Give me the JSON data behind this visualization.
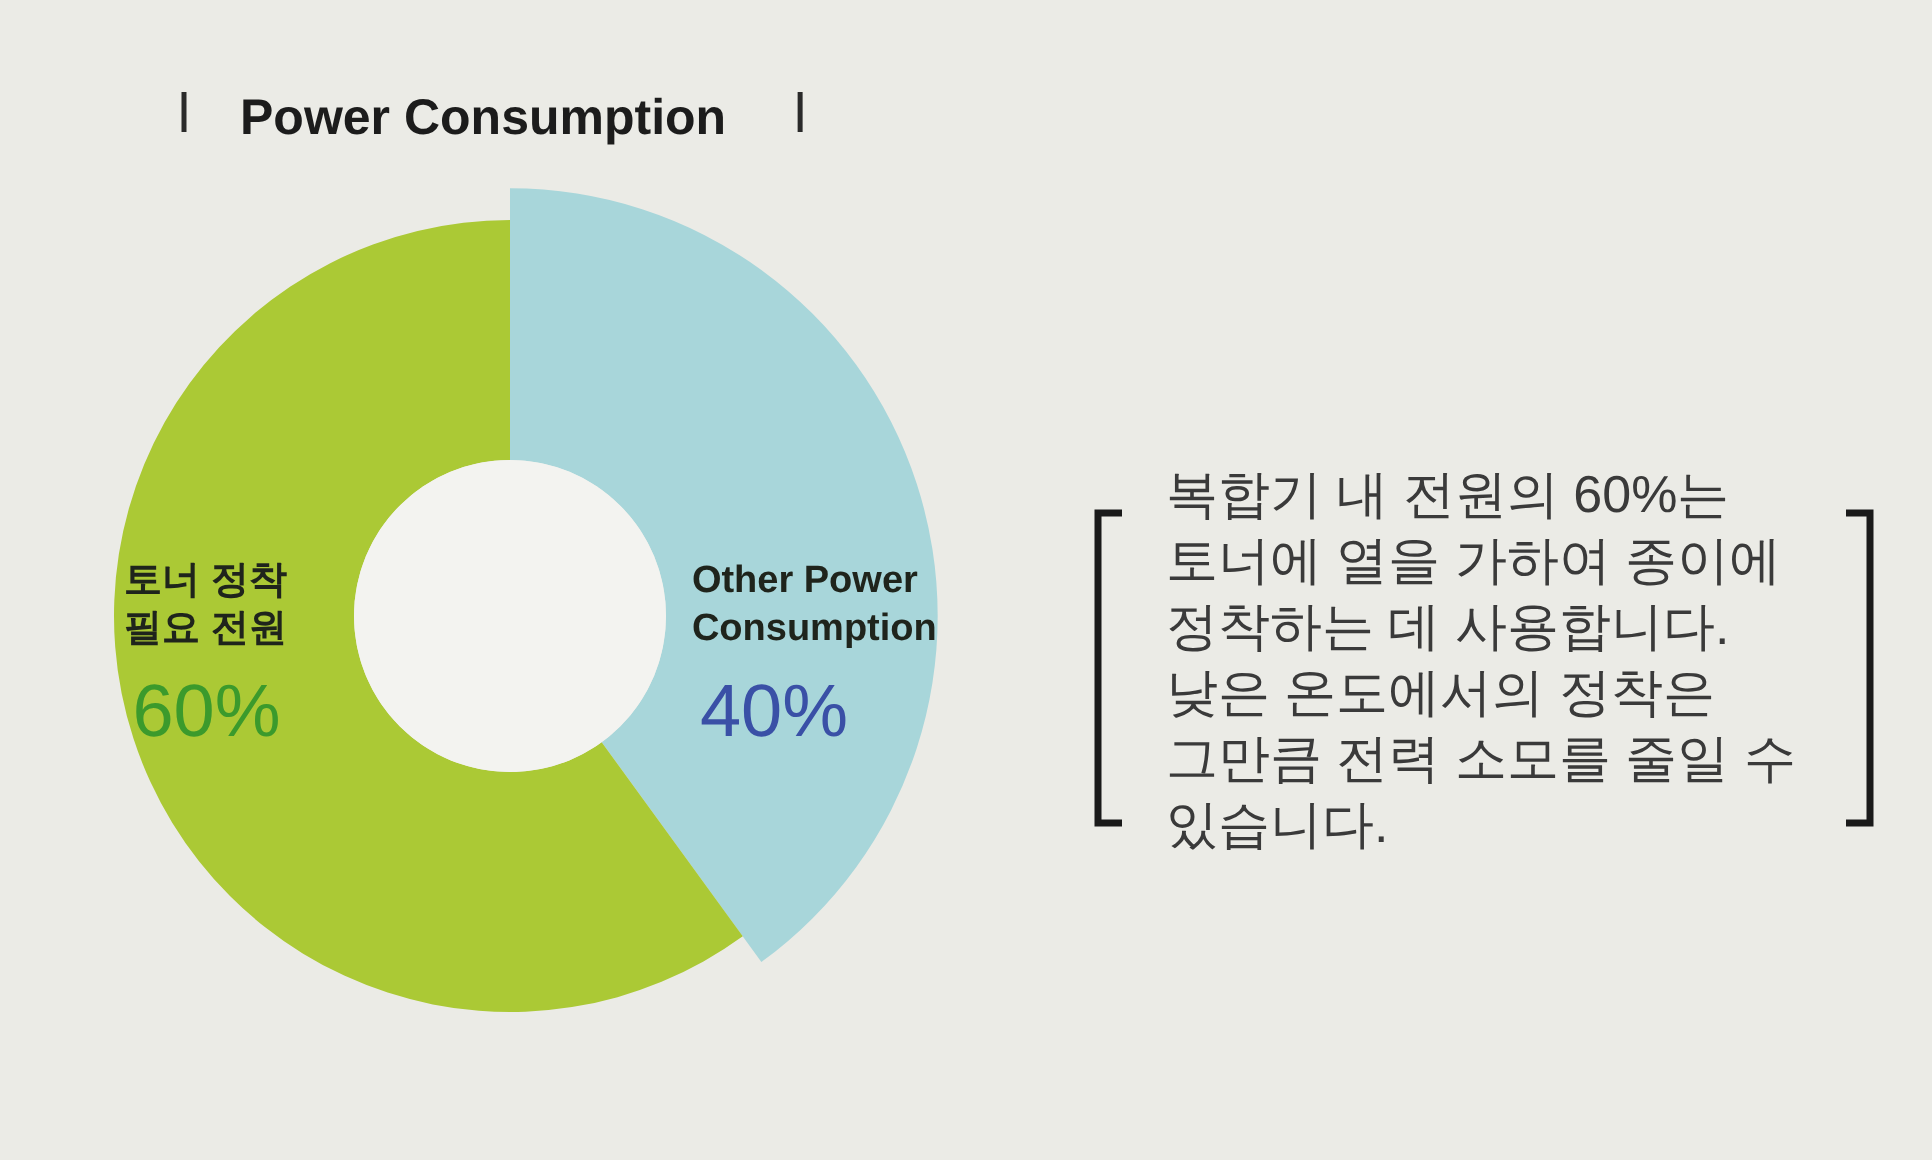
{
  "chart_data": {
    "type": "donut",
    "title": "Power Consumption",
    "categories": [
      "Other Power Consumption",
      "토너 정착 필요 전원"
    ],
    "values": [
      40,
      60
    ],
    "colors": [
      "#a8d6da",
      "#abc935"
    ],
    "value_labels": [
      "40%",
      "60%"
    ],
    "annotations": [
      "복합기 내 전원의 60%는 토너에 열을 가하여 종이에 정착하는 데 사용합니다. 낮은 온도에서의 정착은 그만큼 전력 소모를 줄일 수 있습니다."
    ]
  }
}
